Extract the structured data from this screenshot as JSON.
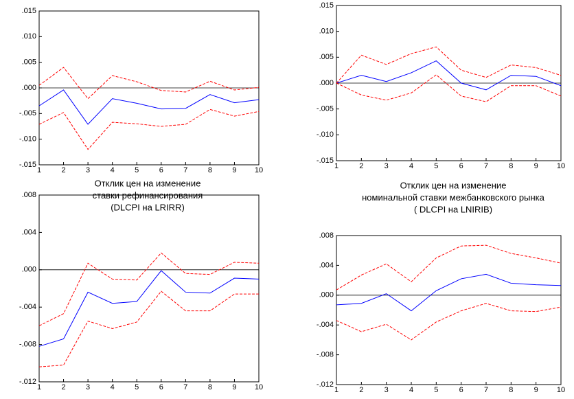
{
  "chart_data": [
    {
      "type": "line",
      "title_lines": [
        "Отклик цен на изменение",
        "ставки рефинансирования",
        "(DLCPI на LRIRR)"
      ],
      "x": [
        1,
        2,
        3,
        4,
        5,
        6,
        7,
        8,
        9,
        10
      ],
      "xlim": [
        1,
        10
      ],
      "xticks": [
        1,
        2,
        3,
        4,
        5,
        6,
        7,
        8,
        9,
        10
      ],
      "ylim": [
        -0.015,
        0.015
      ],
      "yticks": [
        {
          "value": -0.015,
          "label": "-.015"
        },
        {
          "value": -0.01,
          "label": "-.010"
        },
        {
          "value": -0.005,
          "label": "-.005"
        },
        {
          "value": 0,
          "label": ".000"
        },
        {
          "value": 0.005,
          "label": ".005"
        },
        {
          "value": 0.01,
          "label": ".010"
        },
        {
          "value": 0.015,
          "label": ".015"
        }
      ],
      "zero_line": true,
      "series": [
        {
          "color": "#0000ff",
          "style": "solid",
          "values": [
            -0.0035,
            -0.0004,
            -0.0071,
            -0.0021,
            -0.003,
            -0.0041,
            -0.004,
            -0.0013,
            -0.0029,
            -0.0023
          ]
        },
        {
          "color": "#ff0000",
          "style": "dashed",
          "values": [
            0.0005,
            0.004,
            -0.0021,
            0.0024,
            0.0012,
            -0.0005,
            -0.0008,
            0.0013,
            -0.0004,
            0.0001
          ]
        },
        {
          "color": "#ff0000",
          "style": "dashed",
          "values": [
            -0.0071,
            -0.0048,
            -0.012,
            -0.0067,
            -0.007,
            -0.0075,
            -0.0071,
            -0.0042,
            -0.0055,
            -0.0046
          ]
        }
      ]
    },
    {
      "type": "line",
      "title_lines": [
        "Отклик цен на изменение",
        "номинальной ставки межбанковского рынка",
        "( DLCPI на LNIRIB)"
      ],
      "x": [
        1,
        2,
        3,
        4,
        5,
        6,
        7,
        8,
        9,
        10
      ],
      "xlim": [
        1,
        10
      ],
      "xticks": [
        1,
        2,
        3,
        4,
        5,
        6,
        7,
        8,
        9,
        10
      ],
      "ylim": [
        -0.015,
        0.015
      ],
      "yticks": [
        {
          "value": -0.015,
          "label": "-.015"
        },
        {
          "value": -0.01,
          "label": "-.010"
        },
        {
          "value": -0.005,
          "label": "-.005"
        },
        {
          "value": 0,
          "label": ".000"
        },
        {
          "value": 0.005,
          "label": ".005"
        },
        {
          "value": 0.01,
          "label": ".010"
        },
        {
          "value": 0.015,
          "label": ".015"
        }
      ],
      "zero_line": true,
      "series": [
        {
          "color": "#0000ff",
          "style": "solid",
          "values": [
            0,
            0.0015,
            0.0003,
            0.002,
            0.0043,
            0,
            -0.0013,
            0.0015,
            0.0013,
            -0.0005
          ]
        },
        {
          "color": "#ff0000",
          "style": "dashed",
          "values": [
            0,
            0.0054,
            0.0036,
            0.0057,
            0.007,
            0.0025,
            0.0011,
            0.0035,
            0.003,
            0.0015
          ]
        },
        {
          "color": "#ff0000",
          "style": "dashed",
          "values": [
            0,
            -0.0023,
            -0.0033,
            -0.0019,
            0.0016,
            -0.0025,
            -0.0036,
            -0.0005,
            -0.0005,
            -0.0025
          ]
        }
      ]
    },
    {
      "type": "line",
      "x": [
        1,
        2,
        3,
        4,
        5,
        6,
        7,
        8,
        9,
        10
      ],
      "xlim": [
        1,
        10
      ],
      "xticks": [
        1,
        2,
        3,
        4,
        5,
        6,
        7,
        8,
        9,
        10
      ],
      "ylim": [
        -0.012,
        0.008
      ],
      "yticks": [
        {
          "value": -0.012,
          "label": "-.012"
        },
        {
          "value": -0.008,
          "label": "-.008"
        },
        {
          "value": -0.004,
          "label": "-.004"
        },
        {
          "value": 0,
          "label": ".000"
        },
        {
          "value": 0.004,
          "label": ".004"
        },
        {
          "value": 0.008,
          "label": ".008"
        }
      ],
      "zero_line": true,
      "series": [
        {
          "color": "#0000ff",
          "style": "solid",
          "values": [
            -0.0082,
            -0.0074,
            -0.0024,
            -0.0036,
            -0.0034,
            -0.0001,
            -0.0024,
            -0.0025,
            -0.0009,
            -0.001
          ]
        },
        {
          "color": "#ff0000",
          "style": "dashed",
          "values": [
            -0.006,
            -0.0047,
            0.0007,
            -0.001,
            -0.0011,
            0.0018,
            -0.0004,
            -0.0005,
            0.0008,
            0.0007
          ]
        },
        {
          "color": "#ff0000",
          "style": "dashed",
          "values": [
            -0.0104,
            -0.0102,
            -0.0055,
            -0.0063,
            -0.0056,
            -0.0023,
            -0.0044,
            -0.0044,
            -0.0026,
            -0.0026
          ]
        }
      ]
    },
    {
      "type": "line",
      "x": [
        1,
        2,
        3,
        4,
        5,
        6,
        7,
        8,
        9,
        10
      ],
      "xlim": [
        1,
        10
      ],
      "xticks": [
        1,
        2,
        3,
        4,
        5,
        6,
        7,
        8,
        9,
        10
      ],
      "ylim": [
        -0.012,
        0.008
      ],
      "yticks": [
        {
          "value": -0.012,
          "label": "-.012"
        },
        {
          "value": -0.008,
          "label": "-.008"
        },
        {
          "value": -0.004,
          "label": "-.004"
        },
        {
          "value": 0,
          "label": ".000"
        },
        {
          "value": 0.004,
          "label": ".004"
        },
        {
          "value": 0.008,
          "label": ".008"
        }
      ],
      "zero_line": true,
      "series": [
        {
          "color": "#0000ff",
          "style": "solid",
          "values": [
            -0.0013,
            -0.0011,
            0.0002,
            -0.0021,
            0.0006,
            0.0022,
            0.0028,
            0.0016,
            0.0014,
            0.0013
          ]
        },
        {
          "color": "#ff0000",
          "style": "dashed",
          "values": [
            0.0007,
            0.0027,
            0.0042,
            0.0018,
            0.005,
            0.0066,
            0.0067,
            0.0056,
            0.005,
            0.0043
          ]
        },
        {
          "color": "#ff0000",
          "style": "dashed",
          "values": [
            -0.0034,
            -0.0049,
            -0.0039,
            -0.006,
            -0.0036,
            -0.0021,
            -0.0011,
            -0.0021,
            -0.0022,
            -0.0016
          ]
        }
      ]
    }
  ]
}
